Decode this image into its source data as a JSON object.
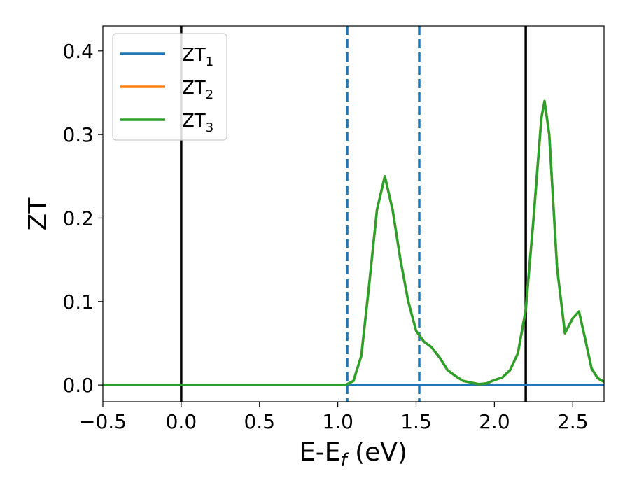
{
  "chart_data": {
    "type": "line",
    "xlabel_main": "E-E",
    "xlabel_sub": "f",
    "xlabel_unit": " (eV)",
    "ylabel": "ZT",
    "xlim": [
      -0.5,
      2.7
    ],
    "ylim": [
      -0.02,
      0.43
    ],
    "xticks": [
      -0.5,
      0.0,
      0.5,
      1.0,
      1.5,
      2.0,
      2.5
    ],
    "xtick_labels": [
      "−0.5",
      "0.0",
      "0.5",
      "1.0",
      "1.5",
      "2.0",
      "2.5"
    ],
    "yticks": [
      0.0,
      0.1,
      0.2,
      0.3,
      0.4
    ],
    "ytick_labels": [
      "0.0",
      "0.1",
      "0.2",
      "0.3",
      "0.4"
    ],
    "grid": false,
    "legend_position": "upper-left",
    "vlines": [
      {
        "x": 0.0,
        "style": "solid",
        "color": "#000000"
      },
      {
        "x": 2.2,
        "style": "solid",
        "color": "#000000"
      },
      {
        "x": 1.06,
        "style": "dashed",
        "color": "#1f77b4"
      },
      {
        "x": 1.52,
        "style": "dashed",
        "color": "#1f77b4"
      }
    ],
    "series": [
      {
        "name_main": "ZT",
        "name_sub": "1",
        "color": "#1f77b4",
        "x": [
          -0.5,
          2.7
        ],
        "y": [
          0.0,
          0.0
        ]
      },
      {
        "name_main": "ZT",
        "name_sub": "2",
        "color": "#ff7f0e",
        "x": [
          -0.5,
          1.05,
          1.1,
          1.15,
          1.2,
          1.25,
          1.3,
          1.35,
          1.4,
          1.45,
          1.5,
          1.55,
          1.6,
          1.65,
          1.7,
          1.75,
          1.8,
          1.85,
          1.9,
          1.95,
          2.0,
          2.05,
          2.1,
          2.15,
          2.2,
          2.25,
          2.3,
          2.32,
          2.35,
          2.4,
          2.45,
          2.5,
          2.54,
          2.58,
          2.62,
          2.66,
          2.7
        ],
        "y": [
          0.0,
          0.0,
          0.005,
          0.035,
          0.12,
          0.21,
          0.25,
          0.21,
          0.15,
          0.1,
          0.065,
          0.052,
          0.045,
          0.033,
          0.018,
          0.011,
          0.005,
          0.003,
          0.001,
          0.002,
          0.006,
          0.009,
          0.018,
          0.038,
          0.09,
          0.2,
          0.32,
          0.34,
          0.3,
          0.14,
          0.062,
          0.08,
          0.088,
          0.055,
          0.02,
          0.008,
          0.004
        ]
      },
      {
        "name_main": "ZT",
        "name_sub": "3",
        "color": "#2ca02c",
        "x": [
          -0.5,
          1.05,
          1.1,
          1.15,
          1.2,
          1.25,
          1.3,
          1.35,
          1.4,
          1.45,
          1.5,
          1.55,
          1.6,
          1.65,
          1.7,
          1.75,
          1.8,
          1.85,
          1.9,
          1.95,
          2.0,
          2.05,
          2.1,
          2.15,
          2.2,
          2.25,
          2.3,
          2.32,
          2.35,
          2.4,
          2.45,
          2.5,
          2.54,
          2.58,
          2.62,
          2.66,
          2.7
        ],
        "y": [
          0.0,
          0.0,
          0.005,
          0.035,
          0.12,
          0.21,
          0.25,
          0.21,
          0.15,
          0.1,
          0.065,
          0.052,
          0.045,
          0.033,
          0.018,
          0.011,
          0.005,
          0.003,
          0.001,
          0.002,
          0.006,
          0.009,
          0.018,
          0.038,
          0.09,
          0.2,
          0.32,
          0.34,
          0.3,
          0.14,
          0.062,
          0.08,
          0.088,
          0.055,
          0.02,
          0.008,
          0.004
        ]
      }
    ]
  }
}
